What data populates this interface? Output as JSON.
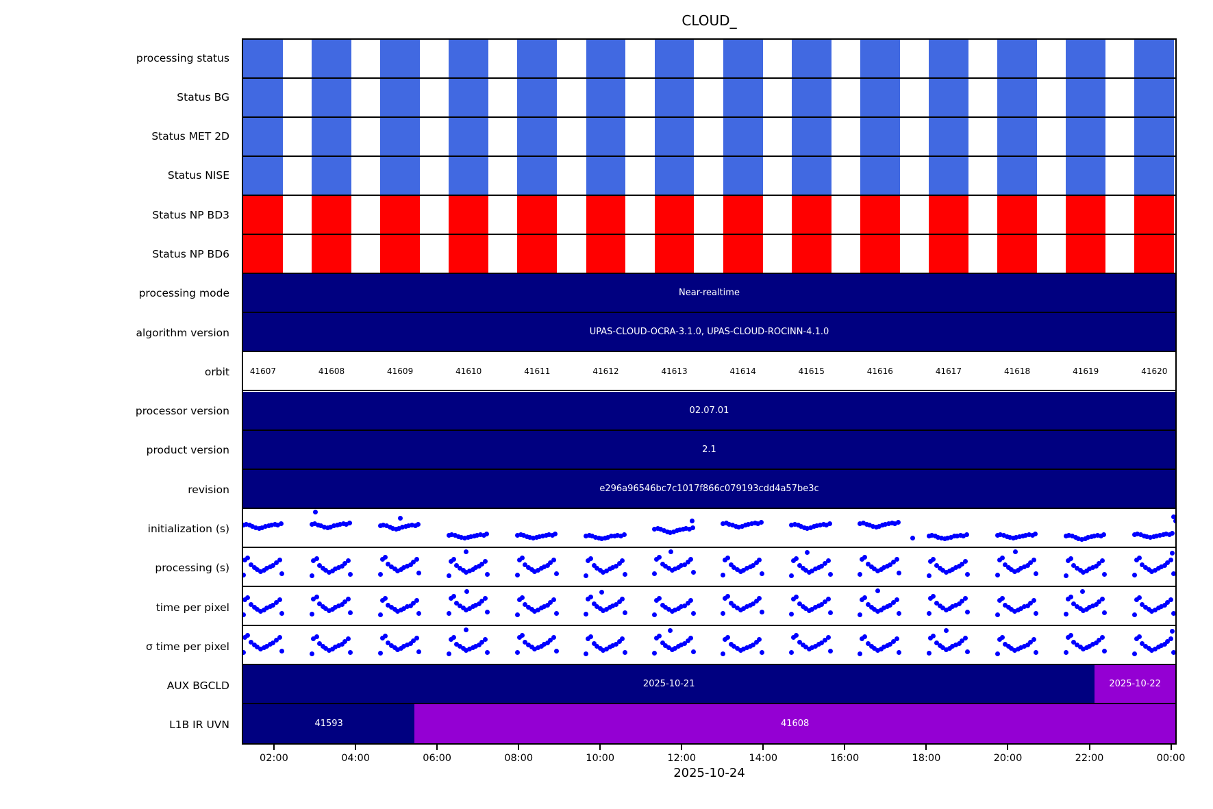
{
  "title": "CLOUD_",
  "xlabel": "2025-10-24",
  "colors": {
    "blue": "#4169E1",
    "red": "#FF0000",
    "navy": "#000080",
    "purple": "#9400D3",
    "dot": "#0000FF",
    "bar_text": "#FFFFFF"
  },
  "chart_data": {
    "type": "heatmap",
    "description": "Product monitoring timeline: 18 horizontal lanes over a 24h time axis, one column per orbit",
    "x_ticks": {
      "labels": [
        "02:00",
        "04:00",
        "06:00",
        "08:00",
        "10:00",
        "12:00",
        "14:00",
        "16:00",
        "18:00",
        "20:00",
        "22:00",
        "00:00"
      ],
      "fracs": [
        0.0344,
        0.1217,
        0.2089,
        0.2961,
        0.3833,
        0.4705,
        0.5577,
        0.6449,
        0.7322,
        0.8194,
        0.9066,
        0.9938
      ]
    },
    "stripe": {
      "count": 14,
      "period_frac": 0.073553,
      "width_frac": 0.042491
    },
    "rows": [
      {
        "label": "processing status",
        "kind": "stripes",
        "color_key": "blue"
      },
      {
        "label": "Status BG",
        "kind": "stripes",
        "color_key": "blue"
      },
      {
        "label": "Status MET 2D",
        "kind": "stripes",
        "color_key": "blue"
      },
      {
        "label": "Status NISE",
        "kind": "stripes",
        "color_key": "blue"
      },
      {
        "label": "Status NP BD3",
        "kind": "stripes",
        "color_key": "red"
      },
      {
        "label": "Status NP BD6",
        "kind": "stripes",
        "color_key": "red"
      },
      {
        "label": "processing mode",
        "kind": "bar",
        "segments": [
          {
            "text": "Near-realtime",
            "color_key": "navy",
            "from": 0,
            "to": 1
          }
        ]
      },
      {
        "label": "algorithm version",
        "kind": "bar",
        "segments": [
          {
            "text": "UPAS-CLOUD-OCRA-3.1.0, UPAS-CLOUD-ROCINN-4.1.0",
            "color_key": "navy",
            "from": 0,
            "to": 1
          }
        ]
      },
      {
        "label": "orbit",
        "kind": "orbits",
        "values": [
          "41607",
          "41608",
          "41609",
          "41610",
          "41611",
          "41612",
          "41613",
          "41614",
          "41615",
          "41616",
          "41617",
          "41618",
          "41619",
          "41620"
        ]
      },
      {
        "label": "processor version",
        "kind": "bar",
        "segments": [
          {
            "text": "02.07.01",
            "color_key": "navy",
            "from": 0,
            "to": 1
          }
        ]
      },
      {
        "label": "product version",
        "kind": "bar",
        "segments": [
          {
            "text": "2.1",
            "color_key": "navy",
            "from": 0,
            "to": 1
          }
        ]
      },
      {
        "label": "revision",
        "kind": "bar",
        "segments": [
          {
            "text": "e296a96546bc7c1017f866c079193cdd4a57be3c",
            "color_key": "navy",
            "from": 0,
            "to": 1
          }
        ]
      },
      {
        "label": "initialization (s)",
        "kind": "scatter",
        "pattern": [
          [
            0.0,
            0.42
          ],
          [
            0.08,
            0.4
          ],
          [
            0.16,
            0.43
          ],
          [
            0.24,
            0.47
          ],
          [
            0.32,
            0.5
          ],
          [
            0.4,
            0.52
          ],
          [
            0.48,
            0.5
          ],
          [
            0.56,
            0.47
          ],
          [
            0.64,
            0.44
          ],
          [
            0.72,
            0.42
          ],
          [
            0.8,
            0.4
          ],
          [
            0.88,
            0.42
          ],
          [
            0.96,
            0.38
          ]
        ],
        "offsets": [
          0.0,
          -0.02,
          0.02,
          0.3,
          0.3,
          0.32,
          0.12,
          -0.04,
          0.0,
          -0.04,
          0.32,
          0.3,
          0.33,
          0.28
        ],
        "outliers": [
          {
            "c": 1,
            "x": 0.1,
            "y": 0.03
          },
          {
            "c": 2,
            "x": 0.5,
            "y": 0.22
          },
          {
            "c": 6,
            "x": 0.95,
            "y": 0.3
          },
          {
            "c": 10,
            "x": -0.4,
            "y": 0.82
          },
          {
            "c": 13,
            "x": 1.04,
            "y": 0.3
          },
          {
            "c": 13,
            "x": 0.99,
            "y": 0.18
          }
        ]
      },
      {
        "label": "processing (s)",
        "kind": "scatter",
        "pattern": [
          [
            0.0,
            0.74
          ],
          [
            0.05,
            0.3
          ],
          [
            0.12,
            0.24
          ],
          [
            0.2,
            0.44
          ],
          [
            0.28,
            0.52
          ],
          [
            0.36,
            0.58
          ],
          [
            0.44,
            0.64
          ],
          [
            0.52,
            0.6
          ],
          [
            0.6,
            0.55
          ],
          [
            0.68,
            0.5
          ],
          [
            0.76,
            0.46
          ],
          [
            0.84,
            0.38
          ],
          [
            0.92,
            0.3
          ],
          [
            0.98,
            0.7
          ]
        ],
        "offsets": [
          0.0,
          0.02,
          -0.02,
          0.03,
          0.0,
          0.02,
          -0.03,
          0.0,
          0.02,
          -0.02,
          0.03,
          0.0,
          0.02,
          0.0
        ],
        "outliers": [
          {
            "c": 3,
            "x": 0.44,
            "y": 0.05
          },
          {
            "c": 6,
            "x": 0.42,
            "y": 0.04
          },
          {
            "c": 8,
            "x": 0.4,
            "y": 0.06
          },
          {
            "c": 11,
            "x": 0.46,
            "y": 0.05
          },
          {
            "c": 13,
            "x": 0.96,
            "y": 0.08
          }
        ]
      },
      {
        "label": "time per pixel",
        "kind": "scatter",
        "pattern": [
          [
            0.0,
            0.74
          ],
          [
            0.05,
            0.3
          ],
          [
            0.12,
            0.24
          ],
          [
            0.2,
            0.44
          ],
          [
            0.28,
            0.52
          ],
          [
            0.36,
            0.58
          ],
          [
            0.44,
            0.64
          ],
          [
            0.52,
            0.6
          ],
          [
            0.6,
            0.55
          ],
          [
            0.68,
            0.5
          ],
          [
            0.76,
            0.46
          ],
          [
            0.84,
            0.38
          ],
          [
            0.92,
            0.3
          ],
          [
            0.98,
            0.7
          ]
        ],
        "offsets": [
          0.02,
          0.0,
          0.03,
          -0.02,
          0.02,
          0.0,
          0.03,
          -0.02,
          0.0,
          0.02,
          -0.02,
          0.03,
          0.0,
          0.02
        ],
        "outliers": [
          {
            "c": 3,
            "x": 0.45,
            "y": 0.06
          },
          {
            "c": 5,
            "x": 0.4,
            "y": 0.08
          },
          {
            "c": 9,
            "x": 0.44,
            "y": 0.05
          },
          {
            "c": 12,
            "x": 0.42,
            "y": 0.07
          }
        ]
      },
      {
        "label": "σ time per pixel",
        "kind": "scatter",
        "pattern": [
          [
            0.0,
            0.74
          ],
          [
            0.05,
            0.3
          ],
          [
            0.12,
            0.24
          ],
          [
            0.2,
            0.44
          ],
          [
            0.28,
            0.52
          ],
          [
            0.36,
            0.58
          ],
          [
            0.44,
            0.64
          ],
          [
            0.52,
            0.6
          ],
          [
            0.6,
            0.55
          ],
          [
            0.68,
            0.5
          ],
          [
            0.76,
            0.46
          ],
          [
            0.84,
            0.38
          ],
          [
            0.92,
            0.3
          ],
          [
            0.98,
            0.7
          ]
        ],
        "offsets": [
          -0.02,
          0.02,
          0.0,
          0.03,
          -0.02,
          0.02,
          0.0,
          0.03,
          -0.02,
          0.02,
          0.0,
          0.03,
          -0.02,
          0.02
        ],
        "outliers": [
          {
            "c": 3,
            "x": 0.44,
            "y": 0.05
          },
          {
            "c": 6,
            "x": 0.4,
            "y": 0.06
          },
          {
            "c": 10,
            "x": 0.44,
            "y": 0.06
          },
          {
            "c": 13,
            "x": 0.95,
            "y": 0.09
          }
        ]
      },
      {
        "label": "AUX BGCLD",
        "kind": "bar",
        "segments": [
          {
            "text": "2025-10-21",
            "color_key": "navy",
            "from": 0,
            "to": 0.9136
          },
          {
            "text": "2025-10-22",
            "color_key": "purple",
            "from": 0.9136,
            "to": 1
          }
        ]
      },
      {
        "label": "L1B IR UVN",
        "kind": "bar",
        "segments": [
          {
            "text": "41593",
            "color_key": "navy",
            "from": 0,
            "to": 0.1839
          },
          {
            "text": "41608",
            "color_key": "purple",
            "from": 0.1839,
            "to": 1
          }
        ]
      }
    ]
  }
}
